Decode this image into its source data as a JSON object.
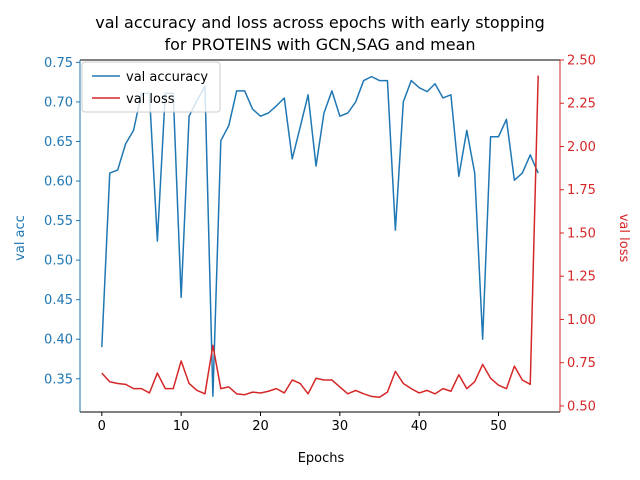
{
  "chart_data": {
    "type": "line",
    "title_line1": "val accuracy and loss across epochs with early stopping",
    "title_line2": "for PROTEINS with GCN,SAG and mean",
    "xlabel": "Epochs",
    "ylabel_left": "val acc",
    "ylabel_right": "val loss",
    "xlim": [
      -2.75,
      57.75
    ],
    "ylim_left": [
      0.308,
      0.753
    ],
    "ylim_right": [
      0.465,
      2.5
    ],
    "xticks": [
      0,
      10,
      20,
      30,
      40,
      50
    ],
    "yticks_left": [
      "0.35",
      "0.40",
      "0.45",
      "0.50",
      "0.55",
      "0.60",
      "0.65",
      "0.70",
      "0.75"
    ],
    "yticks_right": [
      "0.50",
      "0.75",
      "1.00",
      "1.25",
      "1.50",
      "1.75",
      "2.00",
      "2.25",
      "2.50"
    ],
    "left_axis_color": "#1f77b4",
    "right_axis_color": "#d62728",
    "legend_position": "upper-left",
    "series": [
      {
        "name": "val accuracy",
        "color": "#1f77b4",
        "axis": "left",
        "x": [
          0,
          1,
          2,
          3,
          4,
          5,
          6,
          7,
          8,
          9,
          10,
          11,
          12,
          13,
          14,
          15,
          16,
          17,
          18,
          19,
          20,
          21,
          22,
          23,
          24,
          25,
          26,
          27,
          28,
          29,
          30,
          31,
          32,
          33,
          34,
          35,
          36,
          37,
          38,
          39,
          40,
          41,
          42,
          43,
          44,
          45,
          46,
          47,
          48,
          49,
          50,
          51,
          52,
          53,
          54,
          55
        ],
        "values": [
          0.39,
          0.61,
          0.614,
          0.647,
          0.664,
          0.711,
          0.711,
          0.524,
          0.711,
          0.711,
          0.453,
          0.682,
          0.702,
          0.72,
          0.328,
          0.651,
          0.67,
          0.714,
          0.714,
          0.691,
          0.682,
          0.686,
          0.695,
          0.705,
          0.628,
          0.668,
          0.709,
          0.619,
          0.686,
          0.714,
          0.682,
          0.686,
          0.7,
          0.727,
          0.732,
          0.727,
          0.727,
          0.538,
          0.7,
          0.727,
          0.718,
          0.713,
          0.723,
          0.705,
          0.709,
          0.606,
          0.664,
          0.61,
          0.4,
          0.656,
          0.656,
          0.678,
          0.601,
          0.61,
          0.633,
          0.61
        ]
      },
      {
        "name": "val loss",
        "color": "#d62728",
        "axis": "right",
        "x": [
          0,
          1,
          2,
          3,
          4,
          5,
          6,
          7,
          8,
          9,
          10,
          11,
          12,
          13,
          14,
          15,
          16,
          17,
          18,
          19,
          20,
          21,
          22,
          23,
          24,
          25,
          26,
          27,
          28,
          29,
          30,
          31,
          32,
          33,
          34,
          35,
          36,
          37,
          38,
          39,
          40,
          41,
          42,
          43,
          44,
          45,
          46,
          47,
          48,
          49,
          50,
          51,
          52,
          53,
          54,
          55
        ],
        "values": [
          0.69,
          0.64,
          0.63,
          0.625,
          0.6,
          0.6,
          0.575,
          0.69,
          0.6,
          0.6,
          0.76,
          0.63,
          0.59,
          0.57,
          0.85,
          0.6,
          0.61,
          0.57,
          0.565,
          0.58,
          0.575,
          0.585,
          0.6,
          0.575,
          0.65,
          0.63,
          0.57,
          0.66,
          0.65,
          0.65,
          0.61,
          0.57,
          0.59,
          0.57,
          0.555,
          0.55,
          0.58,
          0.7,
          0.63,
          0.6,
          0.575,
          0.59,
          0.57,
          0.6,
          0.585,
          0.68,
          0.6,
          0.64,
          0.74,
          0.66,
          0.62,
          0.6,
          0.73,
          0.65,
          0.625,
          2.41
        ]
      }
    ]
  }
}
